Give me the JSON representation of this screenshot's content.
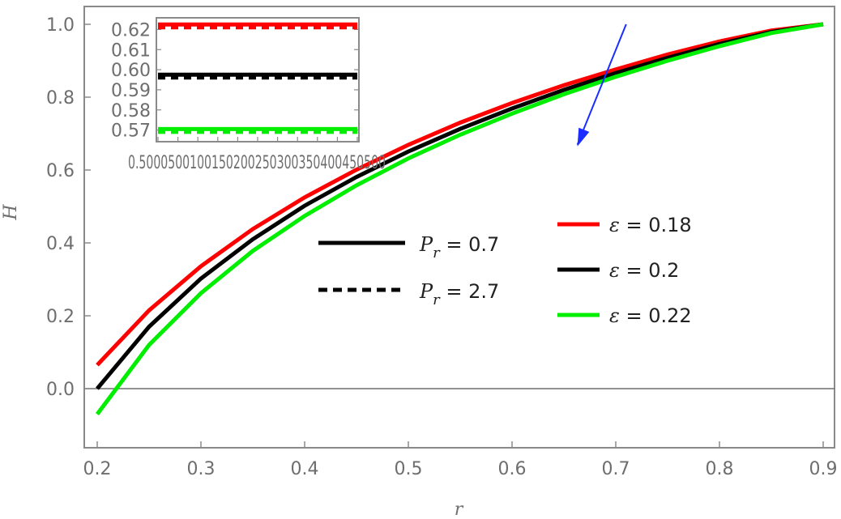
{
  "chart_data": {
    "type": "line",
    "xlabel": "r",
    "ylabel": "H",
    "xlim": [
      0.2,
      0.9
    ],
    "ylim": [
      -0.1,
      1.0
    ],
    "x_ticks": [
      "0.2",
      "0.3",
      "0.4",
      "0.5",
      "0.6",
      "0.7",
      "0.8",
      "0.9"
    ],
    "y_ticks": [
      "0.0",
      "0.2",
      "0.4",
      "0.6",
      "0.8",
      "1.0"
    ],
    "x": [
      0.2,
      0.25,
      0.3,
      0.35,
      0.4,
      0.45,
      0.5,
      0.55,
      0.6,
      0.65,
      0.7,
      0.75,
      0.8,
      0.85,
      0.9
    ],
    "series": [
      {
        "name": "ε = 0.18, Pr = 0.7",
        "color": "#ff0000",
        "style": "solid",
        "values": [
          0.065,
          0.215,
          0.336,
          0.438,
          0.525,
          0.601,
          0.669,
          0.73,
          0.784,
          0.833,
          0.876,
          0.917,
          0.953,
          0.983,
          1.0
        ]
      },
      {
        "name": "ε = 0.18, Pr = 2.7",
        "color": "#ff0000",
        "style": "dashed",
        "values": [
          0.065,
          0.215,
          0.336,
          0.438,
          0.525,
          0.601,
          0.669,
          0.73,
          0.784,
          0.833,
          0.876,
          0.917,
          0.953,
          0.983,
          1.0
        ]
      },
      {
        "name": "ε = 0.2, Pr = 0.7",
        "color": "#000000",
        "style": "solid",
        "values": [
          0.0,
          0.17,
          0.302,
          0.41,
          0.502,
          0.581,
          0.651,
          0.713,
          0.769,
          0.82,
          0.866,
          0.908,
          0.946,
          0.979,
          1.0
        ]
      },
      {
        "name": "ε = 0.2, Pr = 2.7",
        "color": "#000000",
        "style": "dashed",
        "values": [
          0.0,
          0.17,
          0.302,
          0.41,
          0.502,
          0.581,
          0.651,
          0.713,
          0.769,
          0.82,
          0.866,
          0.908,
          0.946,
          0.979,
          1.0
        ]
      },
      {
        "name": "ε = 0.22, Pr = 0.7",
        "color": "#00ee00",
        "style": "solid",
        "values": [
          -0.07,
          0.12,
          0.262,
          0.378,
          0.474,
          0.558,
          0.632,
          0.697,
          0.755,
          0.808,
          0.856,
          0.9,
          0.94,
          0.976,
          1.0
        ]
      },
      {
        "name": "ε = 0.22, Pr = 2.7",
        "color": "#00ee00",
        "style": "dashed",
        "values": [
          -0.07,
          0.12,
          0.262,
          0.378,
          0.474,
          0.558,
          0.632,
          0.697,
          0.755,
          0.808,
          0.856,
          0.9,
          0.94,
          0.976,
          1.0
        ]
      }
    ],
    "legend_eps": [
      {
        "sym": "ε",
        "text": " = 0.18",
        "color": "#ff0000"
      },
      {
        "sym": "ε",
        "text": " = 0.2",
        "color": "#000000"
      },
      {
        "sym": "ε",
        "text": " = 0.22",
        "color": "#00ee00"
      }
    ],
    "legend_pr": [
      {
        "sym": "P",
        "sub": "r",
        "text": " = 0.7",
        "style": "solid"
      },
      {
        "sym": "P",
        "sub": "r",
        "text": " = 2.7",
        "style": "dashed"
      }
    ],
    "arrow": {
      "from": [
        0.71,
        1.0
      ],
      "to": [
        0.663,
        0.665
      ],
      "color": "#1a2cff"
    },
    "inset": {
      "xlim": [
        0.5,
        1.0
      ],
      "ylim": [
        0.565,
        0.625
      ],
      "x_ticks_text": "0.5000500100150200250300350400450500",
      "y_ticks": [
        "0.57",
        "0.58",
        "0.59",
        "0.60",
        "0.61",
        "0.62"
      ],
      "lines": [
        {
          "color": "#ff0000",
          "value": 0.6225
        },
        {
          "color": "#000000",
          "value": 0.5975
        },
        {
          "color": "#00ee00",
          "value": 0.5705
        }
      ]
    }
  }
}
